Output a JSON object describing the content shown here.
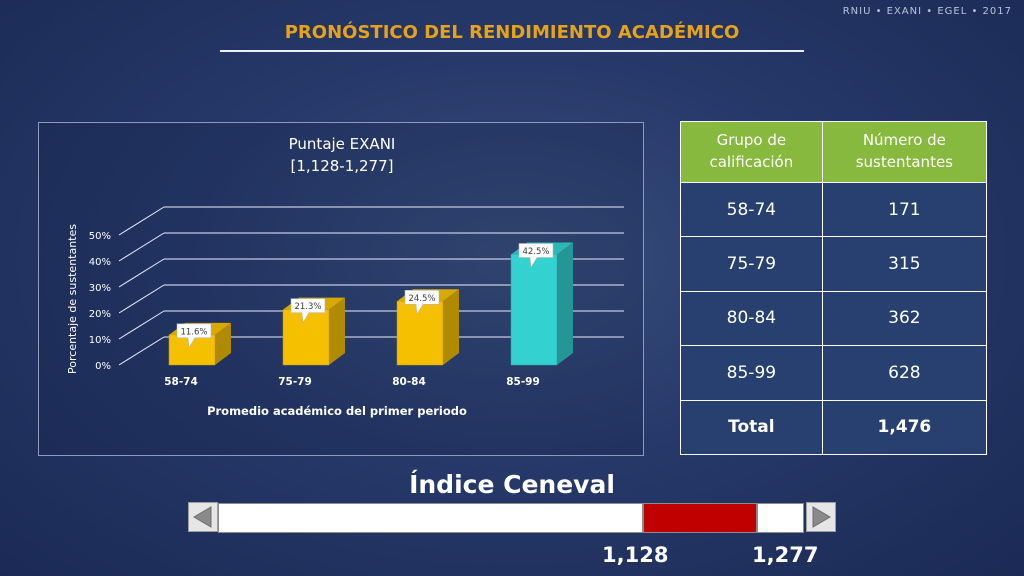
{
  "watermark": "RNIU • EXANI • EGEL • 2017",
  "title": "PRONÓSTICO DEL RENDIMIENTO ACADÉMICO",
  "chart_data": {
    "type": "bar",
    "title": "Puntaje EXANI",
    "subtitle": "[1,128-1,277]",
    "xlabel": "Promedio académico del primer periodo",
    "ylabel": "Porcentaje de sustentantes",
    "categories": [
      "58-74",
      "75-79",
      "80-84",
      "85-99"
    ],
    "values": [
      11.6,
      21.3,
      24.5,
      42.5
    ],
    "data_labels": [
      "11.6%",
      "21.3%",
      "24.5%",
      "42.5%"
    ],
    "yticks": [
      "0%",
      "10%",
      "20%",
      "30%",
      "40%",
      "50%"
    ],
    "ylim": [
      0,
      50
    ],
    "grid": true,
    "bar_colors": [
      "#f5c000",
      "#f5c000",
      "#f5c000",
      "#33d1cf"
    ]
  },
  "table": {
    "headers": [
      "Grupo de calificación",
      "Número de sustentantes"
    ],
    "rows": [
      [
        "58-74",
        "171"
      ],
      [
        "75-79",
        "315"
      ],
      [
        "80-84",
        "362"
      ],
      [
        "85-99",
        "628"
      ]
    ],
    "total": [
      "Total",
      "1,476"
    ]
  },
  "indice": {
    "title": "Índice Ceneval",
    "low": "1,128",
    "high": "1,277"
  },
  "colors": {
    "accent": "#e8a21a",
    "header_green": "#86b93e",
    "range_red": "#c00000"
  },
  "icons": {
    "left": "triangle-left-icon",
    "right": "triangle-right-icon"
  }
}
